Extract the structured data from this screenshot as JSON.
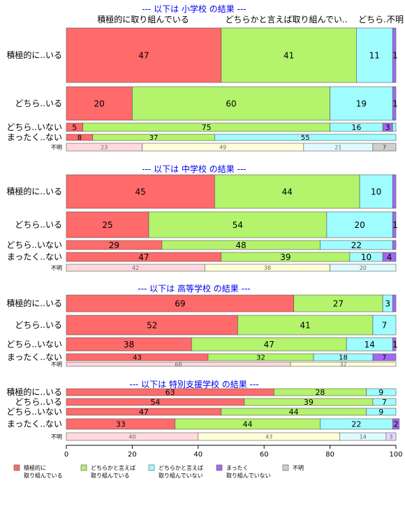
{
  "chart_data": {
    "type": "bar",
    "orientation": "horizontal-stacked-percent",
    "xlim": [
      0,
      100
    ],
    "xticks": [
      "0",
      "20",
      "40",
      "60",
      "80",
      "100"
    ],
    "top_column_labels": [
      "積極的に取り組んでいる",
      "どちらかと言えば取り組んでい..",
      "どちら..",
      "不明"
    ],
    "colors": {
      "seg0": "#ff6a6a",
      "seg1": "#b4f36c",
      "seg2": "#9ffcff",
      "seg3": "#9f6bf0",
      "seg4": "#cfcfcf",
      "title": "#0000ee",
      "border": "#555555"
    },
    "legend": {
      "placement": "bottom",
      "items": [
        {
          "label_lines": [
            "積極的に",
            "取り組んでいる"
          ]
        },
        {
          "label_lines": [
            "どちらかと言えば",
            "取り組んでいる"
          ]
        },
        {
          "label_lines": [
            "どちらかと言えば",
            "取り組んでいない"
          ]
        },
        {
          "label_lines": [
            "まったく",
            "取り組んでいない"
          ]
        },
        {
          "label_lines": [
            "不明"
          ]
        }
      ]
    },
    "panels": [
      {
        "title": "--- 以下は 小学校 の結果 ---",
        "rows": [
          {
            "label": "積極的に..いる",
            "values": [
              47,
              41,
              11,
              1,
              0
            ],
            "labels": [
              "47",
              "41",
              "11",
              "1",
              ""
            ]
          },
          {
            "label": "どちら..いる",
            "values": [
              20,
              60,
              19,
              1,
              0
            ],
            "labels": [
              "20",
              "60",
              "19",
              "1",
              ""
            ]
          },
          {
            "label": "どちら..いない",
            "values": [
              5,
              75,
              16,
              3,
              0
            ],
            "labels": [
              "5",
              "75",
              "16",
              "3",
              ""
            ]
          },
          {
            "label": "まったく..ない",
            "values": [
              8,
              37,
              55,
              0,
              0
            ],
            "labels": [
              "8",
              "37",
              "55",
              "",
              ""
            ]
          },
          {
            "label": "不明",
            "values": [
              23,
              49,
              21,
              0,
              7
            ],
            "labels": [
              "23",
              "49",
              "21",
              "",
              "7"
            ]
          }
        ]
      },
      {
        "title": "--- 以下は 中学校 の結果 ---",
        "rows": [
          {
            "label": "積極的に..いる",
            "values": [
              45,
              44,
              10,
              1,
              0
            ],
            "labels": [
              "45",
              "44",
              "10",
              "",
              ""
            ]
          },
          {
            "label": "どちら..いる",
            "values": [
              25,
              54,
              20,
              1,
              0
            ],
            "labels": [
              "25",
              "54",
              "20",
              "1",
              ""
            ]
          },
          {
            "label": "どちら..いない",
            "values": [
              29,
              48,
              22,
              1,
              0
            ],
            "labels": [
              "29",
              "48",
              "22",
              "",
              ""
            ]
          },
          {
            "label": "まったく..ない",
            "values": [
              47,
              39,
              10,
              4,
              0
            ],
            "labels": [
              "47",
              "39",
              "10",
              "4",
              ""
            ]
          },
          {
            "label": "不明",
            "values": [
              42,
              38,
              20,
              0,
              0
            ],
            "labels": [
              "42",
              "38",
              "20",
              "",
              ""
            ]
          }
        ]
      },
      {
        "title": "--- 以下は 高等学校 の結果 ---",
        "rows": [
          {
            "label": "積極的に..いる",
            "values": [
              69,
              27,
              3,
              1,
              0
            ],
            "labels": [
              "69",
              "27",
              "3",
              "",
              ""
            ]
          },
          {
            "label": "どちら..いる",
            "values": [
              52,
              41,
              7,
              0,
              0
            ],
            "labels": [
              "52",
              "41",
              "7",
              "",
              ""
            ]
          },
          {
            "label": "どちら..いない",
            "values": [
              38,
              47,
              14,
              1,
              0
            ],
            "labels": [
              "38",
              "47",
              "14",
              "1",
              ""
            ]
          },
          {
            "label": "まったく..ない",
            "values": [
              43,
              32,
              18,
              7,
              0
            ],
            "labels": [
              "43",
              "32",
              "18",
              "7",
              ""
            ]
          },
          {
            "label": "不明",
            "values": [
              68,
              32,
              0,
              0,
              0
            ],
            "labels": [
              "68",
              "32",
              "",
              "",
              ""
            ]
          }
        ]
      },
      {
        "title": "--- 以下は 特別支援学校 の結果 ---",
        "rows": [
          {
            "label": "積極的に..いる",
            "values": [
              63,
              28,
              9,
              0,
              0
            ],
            "labels": [
              "63",
              "28",
              "9",
              "",
              ""
            ]
          },
          {
            "label": "どちら..いる",
            "values": [
              54,
              39,
              7,
              0,
              0
            ],
            "labels": [
              "54",
              "39",
              "7",
              "",
              ""
            ]
          },
          {
            "label": "どちら..いない",
            "values": [
              47,
              44,
              9,
              0,
              0
            ],
            "labels": [
              "47",
              "44",
              "9",
              "",
              ""
            ]
          },
          {
            "label": "まったく..ない",
            "values": [
              33,
              44,
              22,
              2,
              0
            ],
            "labels": [
              "33",
              "44",
              "22",
              "2",
              ""
            ]
          },
          {
            "label": "不明",
            "values": [
              40,
              43,
              14,
              3,
              0
            ],
            "labels": [
              "40",
              "43",
              "14",
              "3",
              ""
            ]
          }
        ]
      }
    ]
  }
}
